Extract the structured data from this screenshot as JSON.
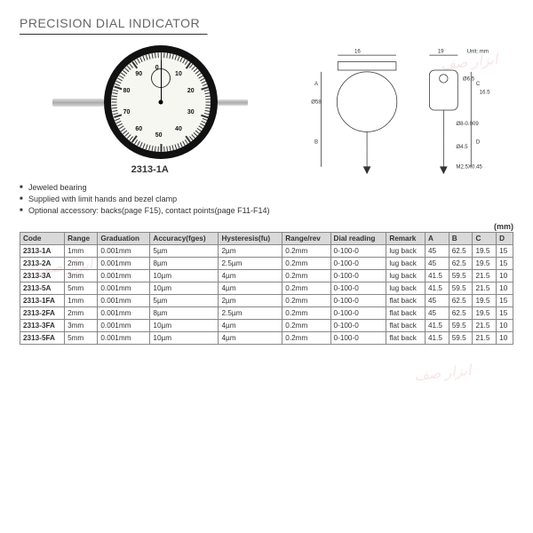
{
  "title": "PRECISION DIAL INDICATOR",
  "model_label": "2313-1A",
  "unit_label": "Unit: mm",
  "table_unit": "(mm)",
  "bullets": [
    "Jeweled bearing",
    "Supplied with limit hands and bezel clamp",
    "Optional accessory: backs(page F15), contact points(page F11-F14)"
  ],
  "schematic": {
    "dims": {
      "top16": "16",
      "top19": "19",
      "dia58": "Ø58",
      "dia65": "Ø6.5",
      "h165": "16.5",
      "dia8": "Ø8-0.009",
      "dia45": "Ø4.5",
      "thread": "M2.5X0.45"
    },
    "axes": {
      "A": "A",
      "B": "B",
      "C": "C",
      "D": "D"
    }
  },
  "columns": [
    "Code",
    "Range",
    "Graduation",
    "Accuracy(fges)",
    "Hysteresis(fu)",
    "Range/rev",
    "Dial reading",
    "Remark",
    "A",
    "B",
    "C",
    "D"
  ],
  "rows": [
    [
      "2313-1A",
      "1mm",
      "0.001mm",
      "5µm",
      "2µm",
      "0.2mm",
      "0-100-0",
      "lug back",
      "45",
      "62.5",
      "19.5",
      "15"
    ],
    [
      "2313-2A",
      "2mm",
      "0.001mm",
      "8µm",
      "2.5µm",
      "0.2mm",
      "0-100-0",
      "lug back",
      "45",
      "62.5",
      "19.5",
      "15"
    ],
    [
      "2313-3A",
      "3mm",
      "0.001mm",
      "10µm",
      "4µm",
      "0.2mm",
      "0-100-0",
      "lug back",
      "41.5",
      "59.5",
      "21.5",
      "10"
    ],
    [
      "2313-5A",
      "5mm",
      "0.001mm",
      "10µm",
      "4µm",
      "0.2mm",
      "0-100-0",
      "lug back",
      "41.5",
      "59.5",
      "21.5",
      "10"
    ],
    [
      "2313-1FA",
      "1mm",
      "0.001mm",
      "5µm",
      "2µm",
      "0.2mm",
      "0-100-0",
      "flat back",
      "45",
      "62.5",
      "19.5",
      "15"
    ],
    [
      "2313-2FA",
      "2mm",
      "0.001mm",
      "8µm",
      "2.5µm",
      "0.2mm",
      "0-100-0",
      "flat back",
      "45",
      "62.5",
      "19.5",
      "15"
    ],
    [
      "2313-3FA",
      "3mm",
      "0.001mm",
      "10µm",
      "4µm",
      "0.2mm",
      "0-100-0",
      "flat back",
      "41.5",
      "59.5",
      "21.5",
      "10"
    ],
    [
      "2313-5FA",
      "5mm",
      "0.001mm",
      "10µm",
      "4µm",
      "0.2mm",
      "0-100-0",
      "flat back",
      "41.5",
      "59.5",
      "21.5",
      "10"
    ]
  ],
  "dial_numbers": [
    "0",
    "10",
    "20",
    "30",
    "40",
    "50",
    "60",
    "70",
    "80",
    "90"
  ],
  "watermark_text": "ابزار صف",
  "colors": {
    "title": "#666",
    "border": "#888",
    "header_bg": "#d9d9d9",
    "text": "#333"
  }
}
